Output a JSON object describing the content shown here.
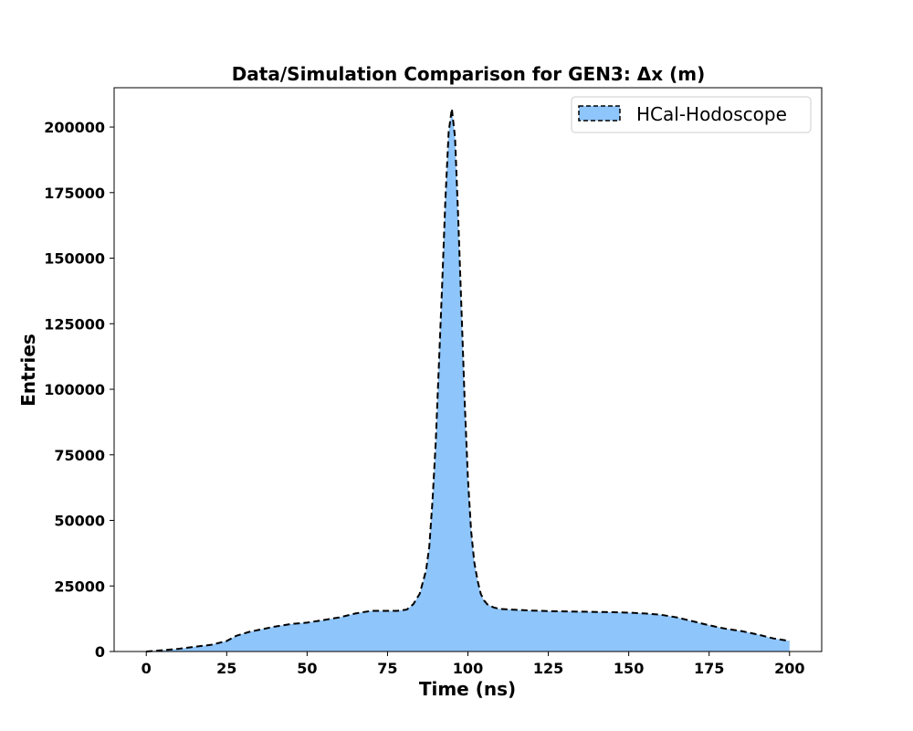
{
  "chart_data": {
    "type": "area",
    "title": "Data/Simulation Comparison for GEN3: Δx (m)",
    "xlabel": "Time (ns)",
    "ylabel": "Entries",
    "xlim": [
      -10,
      210
    ],
    "ylim": [
      0,
      215000
    ],
    "xticks": [
      0,
      25,
      50,
      75,
      100,
      125,
      150,
      175,
      200
    ],
    "xtick_labels": [
      "0",
      "25",
      "50",
      "75",
      "100",
      "125",
      "150",
      "175",
      "200"
    ],
    "yticks": [
      0,
      25000,
      50000,
      75000,
      100000,
      125000,
      150000,
      175000,
      200000
    ],
    "ytick_labels": [
      "0",
      "25000",
      "50000",
      "75000",
      "100000",
      "125000",
      "150000",
      "175000",
      "200000"
    ],
    "grid": false,
    "legend_position": "top-right",
    "series": [
      {
        "name": "HCal-Hodoscope",
        "color": "#8ec5fb",
        "edge_color": "#000000",
        "edge_style": "dashed",
        "x": [
          0,
          5,
          10,
          15,
          20,
          25,
          28,
          32,
          36,
          40,
          45,
          50,
          55,
          60,
          65,
          70,
          75,
          78,
          81,
          83,
          85,
          87,
          88,
          89,
          90,
          91,
          92,
          93,
          94,
          95,
          96,
          97,
          98,
          99,
          100,
          101,
          102,
          103,
          104,
          105,
          106,
          108,
          110,
          115,
          120,
          125,
          130,
          135,
          140,
          145,
          150,
          155,
          160,
          165,
          170,
          175,
          180,
          185,
          190,
          195,
          200
        ],
        "y": [
          0,
          500,
          1000,
          1800,
          2500,
          4000,
          6000,
          7500,
          8500,
          9500,
          10500,
          11000,
          12000,
          13000,
          14500,
          15500,
          15500,
          15500,
          16000,
          18000,
          22000,
          31000,
          40000,
          58000,
          80000,
          110000,
          140000,
          172000,
          198000,
          207000,
          196000,
          165000,
          130000,
          95000,
          66000,
          46000,
          34000,
          27000,
          22000,
          19500,
          18000,
          16800,
          16200,
          15900,
          15600,
          15400,
          15300,
          15200,
          15100,
          15000,
          14800,
          14500,
          14000,
          13000,
          11500,
          10000,
          8700,
          7800,
          6500,
          5000,
          4000
        ]
      }
    ]
  }
}
